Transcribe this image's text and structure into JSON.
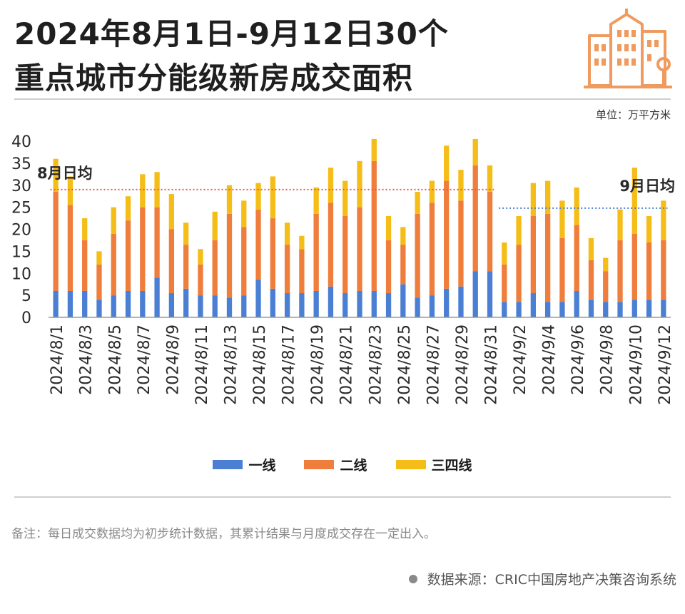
{
  "header": {
    "title_line1": "2024年8月1日-9月12日30个",
    "title_line2": "重点城市分能级新房成交面积",
    "unit": "单位：万平方米"
  },
  "logo": {
    "icon": "building-icon",
    "color": "#ef9a5e"
  },
  "footer": {
    "note": "备注：每日成交数据均为初步统计数据，其累计结果与月度成交存在一定出入。",
    "source": "数据来源：CRIC中国房地产决策咨询系统"
  },
  "chart_data": {
    "type": "bar",
    "stacked": true,
    "ylim": [
      0,
      40
    ],
    "yticks": [
      0,
      5,
      10,
      15,
      20,
      25,
      30,
      35,
      40
    ],
    "grid": false,
    "legend_position": "bottom",
    "categories": [
      "2024/8/1",
      "2024/8/2",
      "2024/8/3",
      "2024/8/4",
      "2024/8/5",
      "2024/8/6",
      "2024/8/7",
      "2024/8/8",
      "2024/8/9",
      "2024/8/10",
      "2024/8/11",
      "2024/8/12",
      "2024/8/13",
      "2024/8/14",
      "2024/8/15",
      "2024/8/16",
      "2024/8/17",
      "2024/8/18",
      "2024/8/19",
      "2024/8/20",
      "2024/8/21",
      "2024/8/22",
      "2024/8/23",
      "2024/8/24",
      "2024/8/25",
      "2024/8/26",
      "2024/8/27",
      "2024/8/28",
      "2024/8/29",
      "2024/8/30",
      "2024/8/31",
      "2024/9/1",
      "2024/9/2",
      "2024/9/3",
      "2024/9/4",
      "2024/9/5",
      "2024/9/6",
      "2024/9/7",
      "2024/9/8",
      "2024/9/9",
      "2024/9/10",
      "2024/9/11",
      "2024/9/12"
    ],
    "xtick_labels": [
      "2024/8/1",
      "2024/8/3",
      "2024/8/5",
      "2024/8/7",
      "2024/8/9",
      "2024/8/11",
      "2024/8/13",
      "2024/8/15",
      "2024/8/17",
      "2024/8/19",
      "2024/8/21",
      "2024/8/23",
      "2024/8/25",
      "2024/8/27",
      "2024/8/29",
      "2024/8/31",
      "2024/9/2",
      "2024/9/4",
      "2024/9/6",
      "2024/9/8",
      "2024/9/10",
      "2024/9/12"
    ],
    "series": [
      {
        "name": "一线",
        "color": "#4a7fd4",
        "values": [
          6,
          6,
          6,
          4,
          5,
          6,
          6,
          9,
          5.5,
          6.5,
          5,
          5,
          4.5,
          5,
          8.5,
          6.5,
          5.5,
          5.5,
          6,
          7,
          5.5,
          6,
          6,
          5.5,
          7.5,
          4.5,
          5,
          6.5,
          7,
          10.5,
          10.5,
          3.5,
          3.5,
          5.5,
          3.5,
          3.5,
          6,
          4,
          3.5,
          3.5,
          4,
          4,
          4
        ]
      },
      {
        "name": "二线",
        "color": "#ef7d3c",
        "values": [
          22.5,
          19.5,
          11.5,
          8,
          14,
          16,
          19,
          16,
          14.5,
          10,
          7,
          12.5,
          19,
          15.5,
          16,
          16,
          11,
          10,
          17.5,
          19,
          17.5,
          19,
          29.5,
          12,
          9,
          19,
          21,
          24.5,
          19.5,
          24,
          18,
          8.5,
          13,
          17.5,
          20,
          14.5,
          15,
          9,
          7,
          14,
          15,
          13,
          13.5
        ]
      },
      {
        "name": "三四线",
        "color": "#f5bd18",
        "values": [
          7.5,
          6.5,
          5,
          3,
          6,
          5.5,
          7.5,
          8,
          8,
          5,
          3.5,
          6.5,
          6.5,
          6,
          6,
          9.5,
          5,
          3,
          6,
          8,
          8,
          10.5,
          5,
          5.5,
          4,
          5,
          5,
          8,
          7,
          6,
          6,
          5,
          6.5,
          7.5,
          7.5,
          8.5,
          8.5,
          5,
          3,
          7,
          15,
          6,
          9
        ]
      }
    ],
    "annotations": [
      {
        "text": "8月日均",
        "value": 29,
        "from": "2024/8/1",
        "to": "2024/8/31",
        "color": "#e05a5a"
      },
      {
        "text": "9月日均",
        "value": 24.8,
        "from": "2024/9/1",
        "to": "2024/9/12",
        "color": "#4a7fd4"
      }
    ]
  }
}
